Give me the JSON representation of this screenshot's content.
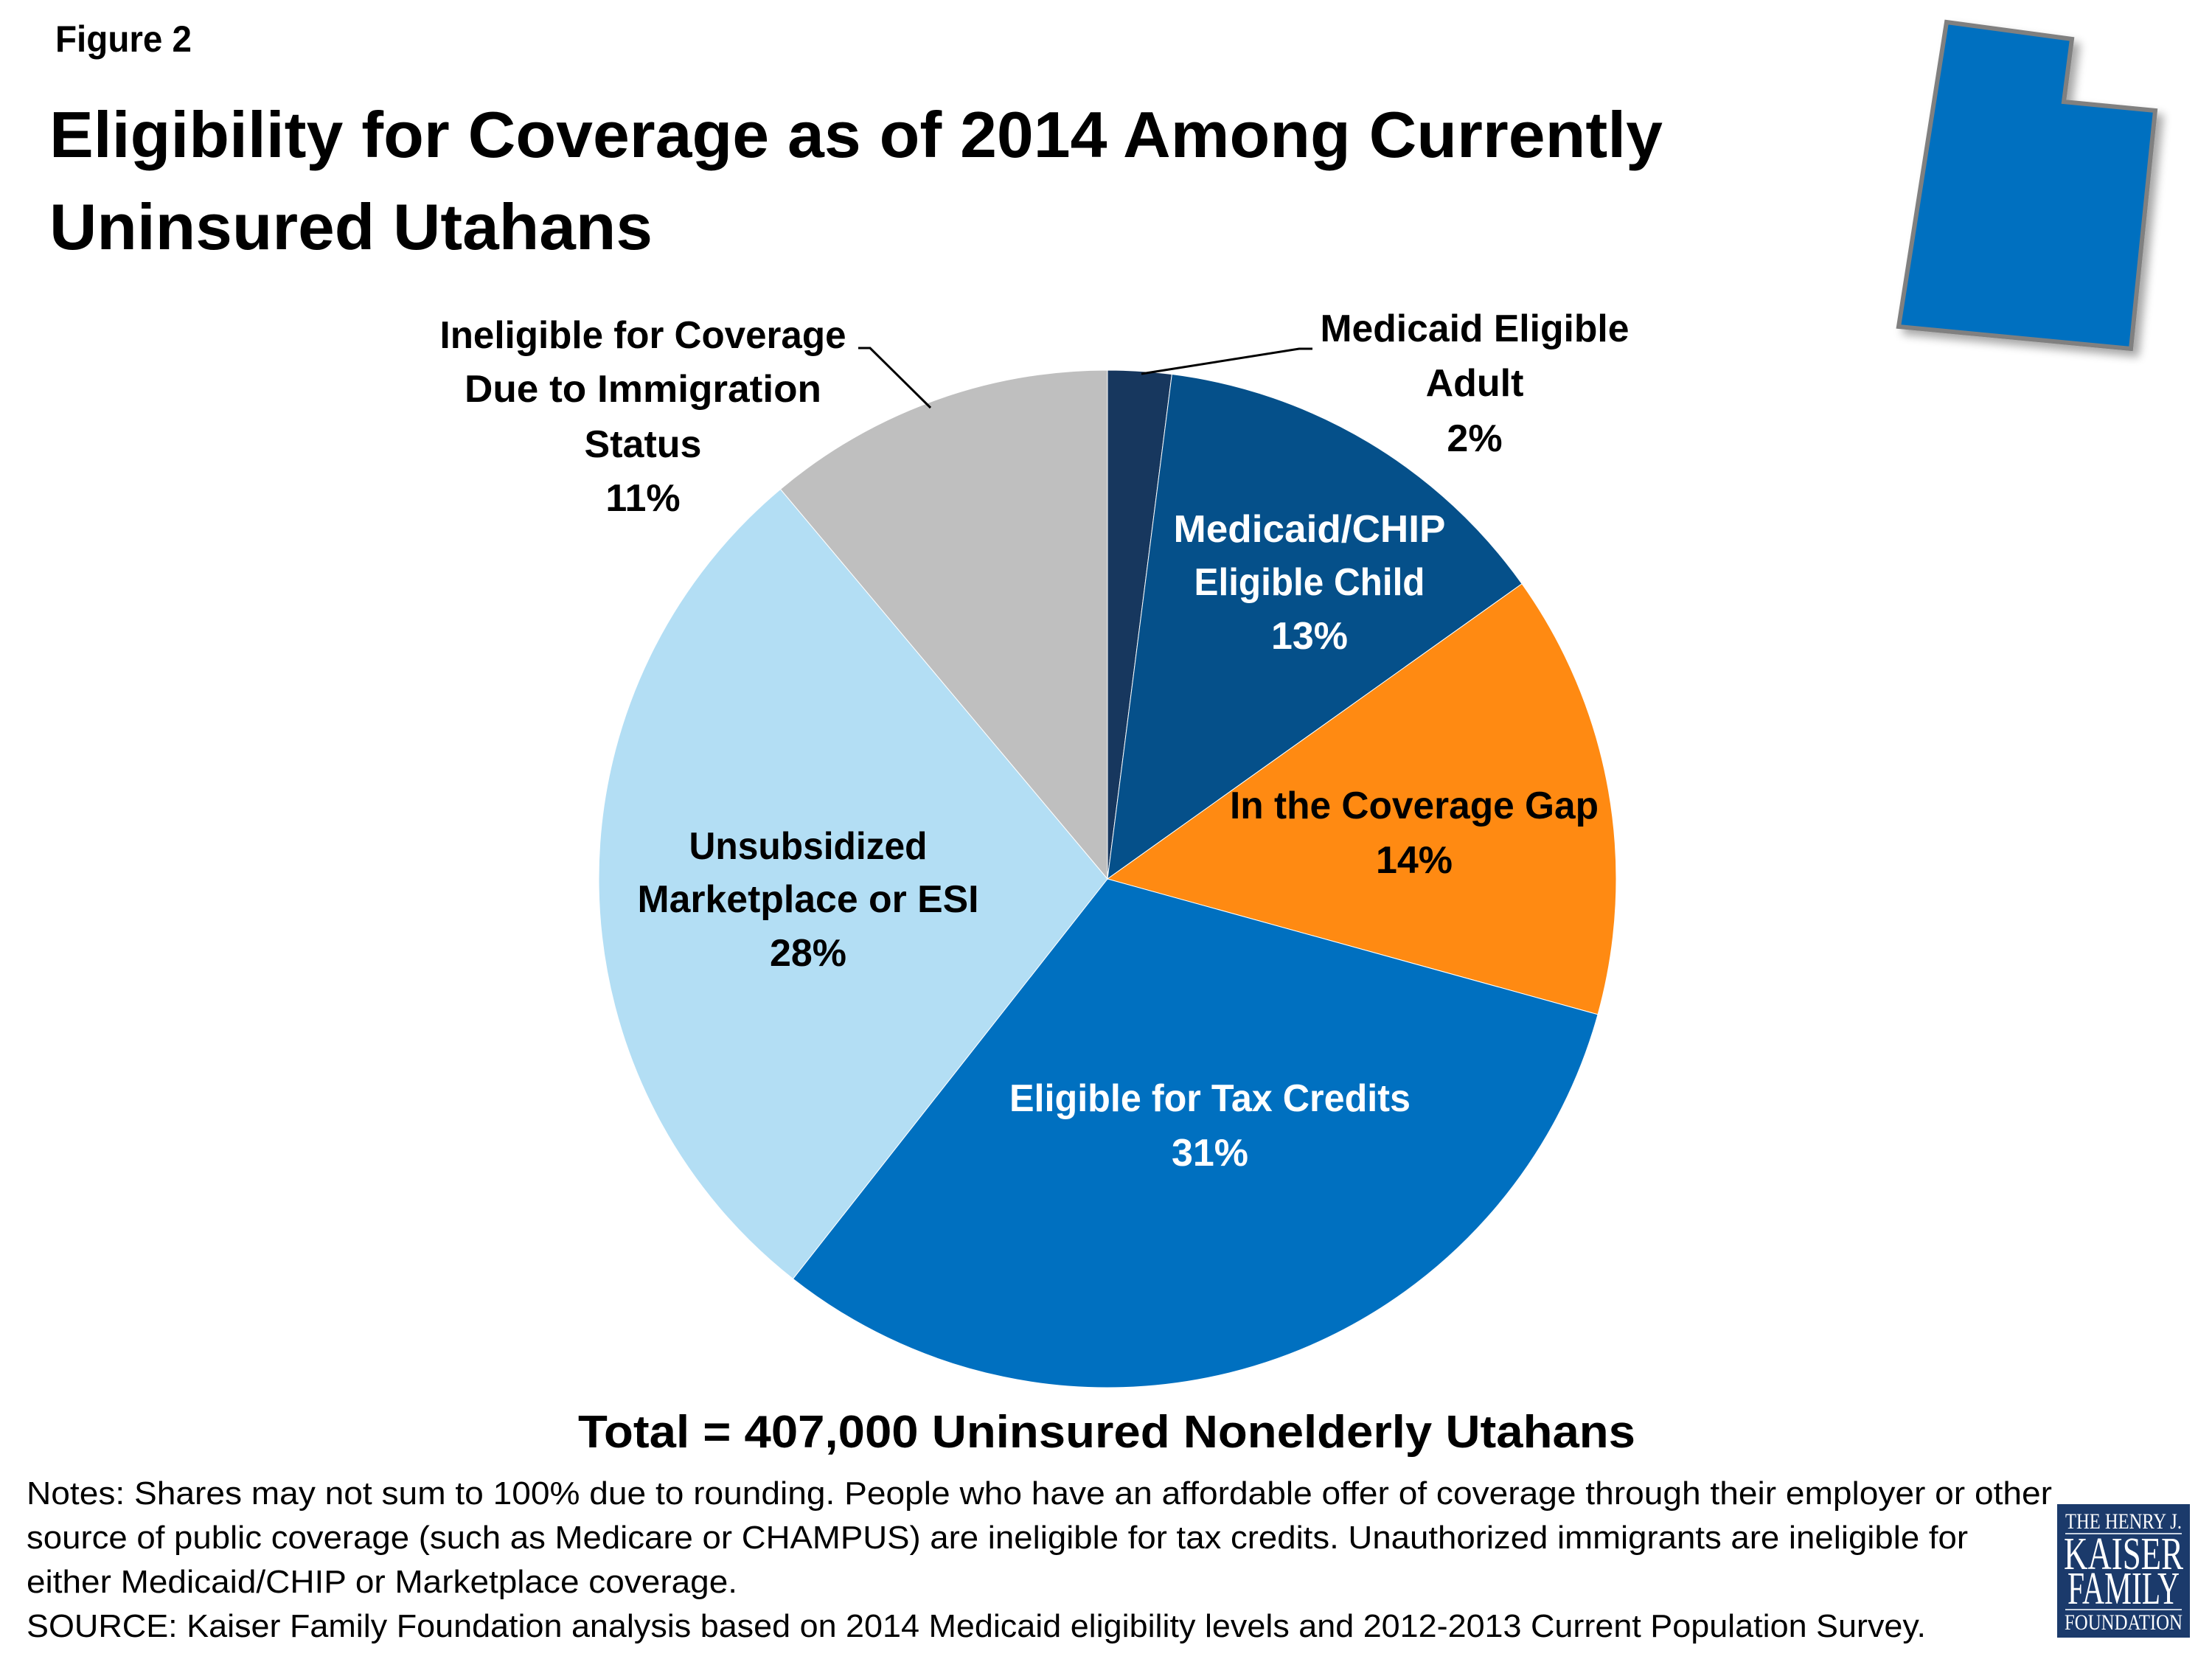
{
  "figure_label": "Figure 2",
  "title": {
    "line1": "Eligibility for Coverage as of 2014 Among Currently",
    "line2": "Uninsured Utahans"
  },
  "state_icon": "utah-state-shape-icon",
  "colors": {
    "medicaid_adult": "#17375E",
    "medicaid_child": "#05508A",
    "coverage_gap": "#FF8A12",
    "tax_credits": "#0070C0",
    "unsubsidized": "#B3DEF4",
    "ineligible": "#BFBFBF",
    "state_fill": "#0070C0",
    "state_stroke": "#808080",
    "logo_bg": "#1B3A6B"
  },
  "chart_data": {
    "type": "pie",
    "title": "Eligibility for Coverage as of 2014 Among Currently Uninsured Utahans",
    "start_angle": "12 o'clock",
    "direction": "clockwise",
    "unit": "%",
    "slices": [
      {
        "key": "medicaid_adult",
        "label_lines": [
          "Medicaid Eligible",
          "Adult"
        ],
        "value": 2,
        "value_label": "2%",
        "label_position": "outside-top-right",
        "label_color": "#000000"
      },
      {
        "key": "medicaid_child",
        "label_lines": [
          "Medicaid/CHIP",
          "Eligible Child"
        ],
        "value": 13,
        "value_label": "13%",
        "label_position": "inside",
        "label_color": "#FFFFFF"
      },
      {
        "key": "coverage_gap",
        "label_lines": [
          "In the Coverage Gap"
        ],
        "value": 14,
        "value_label": "14%",
        "label_position": "inside",
        "label_color": "#000000"
      },
      {
        "key": "tax_credits",
        "label_lines": [
          "Eligible for Tax Credits"
        ],
        "value": 31,
        "value_label": "31%",
        "label_position": "inside",
        "label_color": "#FFFFFF"
      },
      {
        "key": "unsubsidized",
        "label_lines": [
          "Unsubsidized",
          "Marketplace or ESI"
        ],
        "value": 28,
        "value_label": "28%",
        "label_position": "inside",
        "label_color": "#000000"
      },
      {
        "key": "ineligible",
        "label_lines": [
          "Ineligible for Coverage",
          "Due to Immigration",
          "Status"
        ],
        "value": 11,
        "value_label": "11%",
        "label_position": "outside-top-left",
        "label_color": "#000000"
      }
    ],
    "total_label": "Total = 407,000 Uninsured Nonelderly Utahans"
  },
  "notes": {
    "line1": "Notes: Shares may not sum to 100% due to rounding. People who have an affordable offer of coverage through their employer or other",
    "line2": "source of public coverage (such as Medicare or CHAMPUS) are ineligible for tax credits. Unauthorized immigrants are ineligible for",
    "line3": "either Medicaid/CHIP or Marketplace coverage.",
    "source": "SOURCE: Kaiser Family Foundation analysis based on 2014 Medicaid eligibility levels and 2012-2013 Current Population Survey."
  },
  "logo": {
    "line1": "THE HENRY J.",
    "line2": "KAISER",
    "line3": "FAMILY",
    "line4": "FOUNDATION"
  }
}
